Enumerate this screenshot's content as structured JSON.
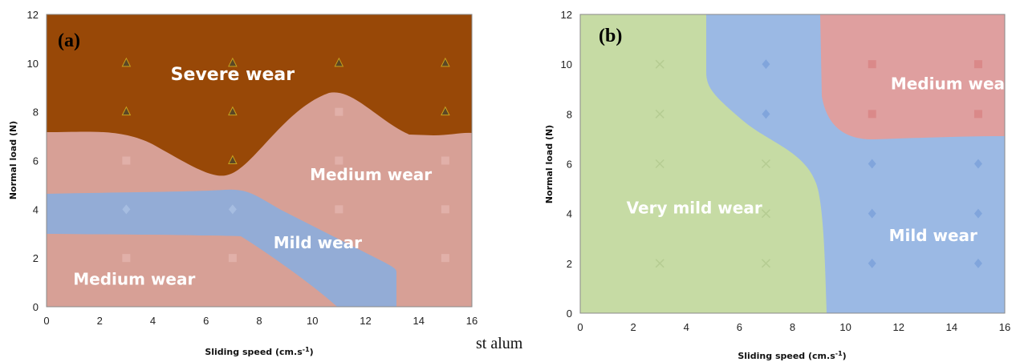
{
  "stray_text": "st alum",
  "chart_data": [
    {
      "type": "area",
      "panel_label": "(a)",
      "xlabel": "Sliding speed (cm.s",
      "xlabel_sup": "-1",
      "xlabel_close": ")",
      "ylabel": "Normal load  (N)",
      "xlim": [
        0,
        16
      ],
      "ylim": [
        0,
        12
      ],
      "xticks": [
        0,
        2,
        4,
        6,
        8,
        10,
        12,
        14,
        16
      ],
      "yticks": [
        0,
        2,
        4,
        6,
        8,
        10,
        12
      ],
      "grid": false,
      "colors": {
        "severe": "#984807",
        "medium": "#d7a096",
        "mild": "#93acd6",
        "triangle": "#5a4626"
      },
      "regions": [
        {
          "label": "Severe wear",
          "label_at": [
            7,
            9.3
          ]
        },
        {
          "label": "Medium wear",
          "label_at": [
            12.2,
            5.2
          ]
        },
        {
          "label": "Mild wear",
          "label_at": [
            10.2,
            2.4
          ]
        },
        {
          "label": "Medium wear",
          "label_at": [
            3.3,
            0.9
          ]
        }
      ],
      "series": [
        {
          "marker": "triangle",
          "points": [
            [
              3,
              10
            ],
            [
              7,
              10
            ],
            [
              11,
              10
            ],
            [
              15,
              10
            ],
            [
              3,
              8
            ],
            [
              7,
              8
            ],
            [
              15,
              8
            ],
            [
              7,
              6
            ]
          ]
        },
        {
          "marker": "square",
          "points": [
            [
              3,
              6
            ],
            [
              11,
              8
            ],
            [
              11,
              6
            ],
            [
              15,
              6
            ],
            [
              11,
              4
            ],
            [
              15,
              4
            ],
            [
              3,
              2
            ],
            [
              7,
              2
            ],
            [
              15,
              2
            ]
          ]
        },
        {
          "marker": "diamond",
          "points": [
            [
              3,
              4
            ],
            [
              7,
              4
            ]
          ]
        }
      ]
    },
    {
      "type": "area",
      "panel_label": "(b)",
      "xlabel": "Sliding speed (cm.s",
      "xlabel_sup": "-1",
      "xlabel_close": ")",
      "ylabel": "Normal load  (N)",
      "xlim": [
        0,
        16
      ],
      "ylim": [
        0,
        12
      ],
      "xticks": [
        0,
        2,
        4,
        6,
        8,
        10,
        12,
        14,
        16
      ],
      "yticks": [
        0,
        2,
        4,
        6,
        8,
        10,
        12
      ],
      "grid": false,
      "colors": {
        "very_mild": "#c6dba4",
        "mild": "#9bb9e4",
        "medium": "#df9f9f"
      },
      "regions": [
        {
          "label": "Very mild wear",
          "label_at": [
            4.3,
            4
          ]
        },
        {
          "label": "Mild wear",
          "label_at": [
            13.3,
            2.9
          ]
        },
        {
          "label": "Medium wear",
          "label_at": [
            14,
            9
          ]
        }
      ],
      "series": [
        {
          "marker": "cross",
          "points": [
            [
              3,
              10
            ],
            [
              3,
              8
            ],
            [
              3,
              6
            ],
            [
              7,
              6
            ],
            [
              7,
              4
            ],
            [
              3,
              2
            ],
            [
              7,
              2
            ]
          ]
        },
        {
          "marker": "diamond",
          "points": [
            [
              7,
              10
            ],
            [
              7,
              8
            ],
            [
              11,
              6
            ],
            [
              15,
              6
            ],
            [
              11,
              4
            ],
            [
              15,
              4
            ],
            [
              11,
              2
            ],
            [
              15,
              2
            ]
          ]
        },
        {
          "marker": "square",
          "points": [
            [
              11,
              10
            ],
            [
              15,
              10
            ],
            [
              11,
              8
            ],
            [
              15,
              8
            ]
          ]
        }
      ]
    }
  ]
}
